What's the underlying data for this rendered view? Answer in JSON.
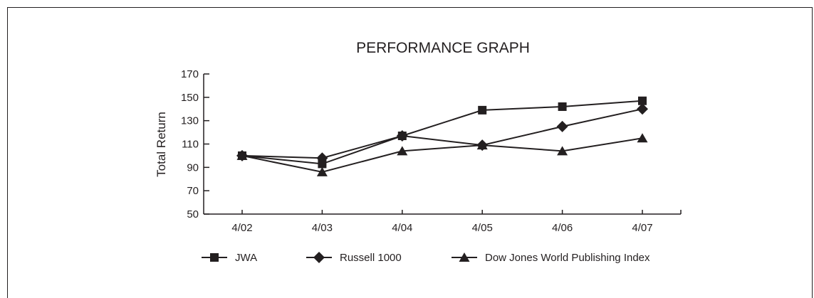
{
  "chart_data": {
    "type": "line",
    "title": "PERFORMANCE GRAPH",
    "xlabel": "",
    "ylabel": "Total Return",
    "categories": [
      "4/02",
      "4/03",
      "4/04",
      "4/05",
      "4/06",
      "4/07"
    ],
    "ylim": [
      50,
      170
    ],
    "yticks": [
      50,
      70,
      90,
      110,
      130,
      150,
      170
    ],
    "grid": false,
    "legend_position": "bottom",
    "series": [
      {
        "name": "JWA",
        "marker": "square",
        "values": [
          100,
          93,
          117,
          139,
          142,
          147
        ]
      },
      {
        "name": "Russell 1000",
        "marker": "diamond",
        "values": [
          100,
          98,
          117,
          109,
          125,
          140
        ]
      },
      {
        "name": "Dow Jones World Publishing Index",
        "marker": "triangle",
        "values": [
          100,
          86,
          104,
          109,
          104,
          115
        ]
      }
    ],
    "colors": {
      "ink": "#231f20",
      "background": "#ffffff"
    }
  }
}
